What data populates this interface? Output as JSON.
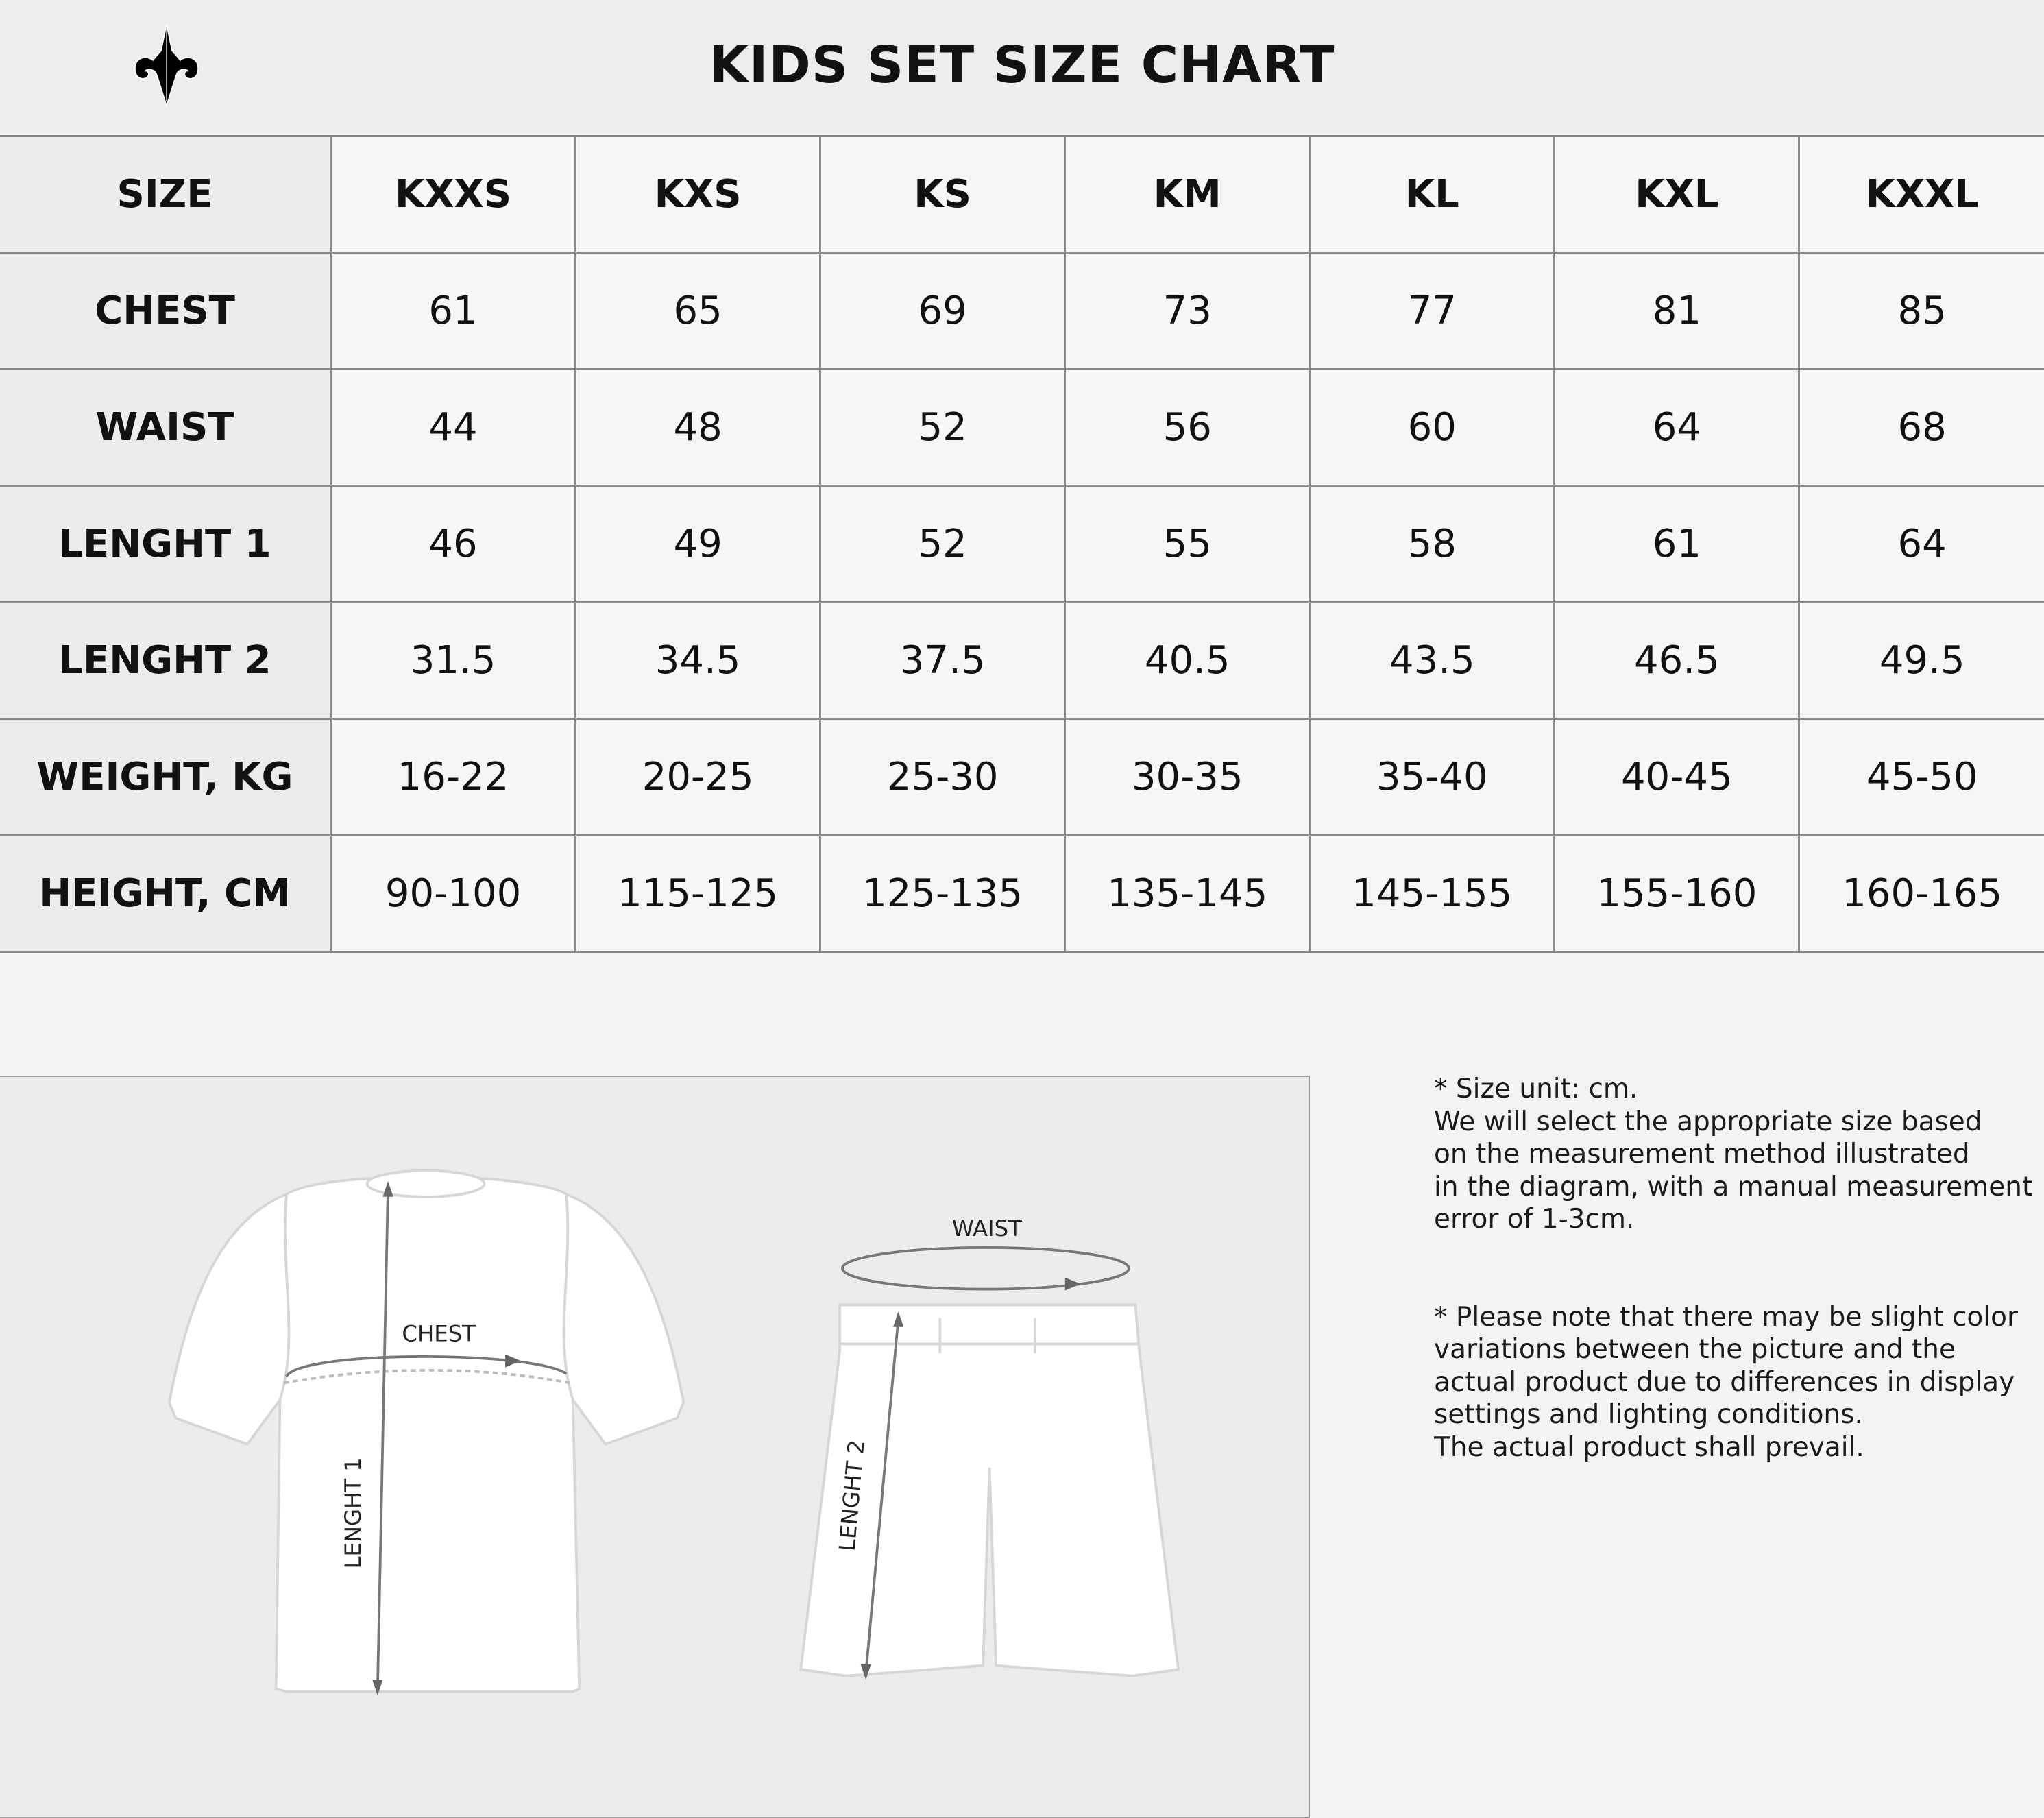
{
  "header": {
    "title": "KIDS SET SIZE CHART",
    "logo": "fleur-de-lis-logo"
  },
  "table": {
    "columns": [
      "SIZE",
      "KXXS",
      "KXS",
      "KS",
      "KM",
      "KL",
      "KXL",
      "KXXL"
    ],
    "rows": [
      {
        "label": "CHEST",
        "values": [
          "61",
          "65",
          "69",
          "73",
          "77",
          "81",
          "85"
        ]
      },
      {
        "label": "WAIST",
        "values": [
          "44",
          "48",
          "52",
          "56",
          "60",
          "64",
          "68"
        ]
      },
      {
        "label": "LENGHT 1",
        "values": [
          "46",
          "49",
          "52",
          "55",
          "58",
          "61",
          "64"
        ]
      },
      {
        "label": "LENGHT 2",
        "values": [
          "31.5",
          "34.5",
          "37.5",
          "40.5",
          "43.5",
          "46.5",
          "49.5"
        ]
      },
      {
        "label": "WEIGHT, KG",
        "values": [
          "16-22",
          "20-25",
          "25-30",
          "30-35",
          "35-40",
          "40-45",
          "45-50"
        ]
      },
      {
        "label": "HEIGHT, CM",
        "values": [
          "90-100",
          "115-125",
          "125-135",
          "135-145",
          "145-155",
          "155-160",
          "160-165"
        ]
      }
    ]
  },
  "diagram": {
    "chest": "CHEST",
    "length1": "LENGHT 1",
    "waist": "WAIST",
    "length2": "LENGHT 2"
  },
  "notes": [
    "* Size unit: cm.\nWe will select the appropriate size based\non the measurement method illustrated\nin the diagram, with a manual measurement\nerror of 1-3cm.",
    "* Please note that there may be slight color\nvariations between the picture and the\nactual product due to differences in display\nsettings and lighting conditions.\nThe actual product shall prevail."
  ],
  "colors": {
    "header_bg": "#ededed",
    "cell_bg": "#f6f6f6",
    "label_bg": "#ececec",
    "border": "#8a8a8a"
  }
}
